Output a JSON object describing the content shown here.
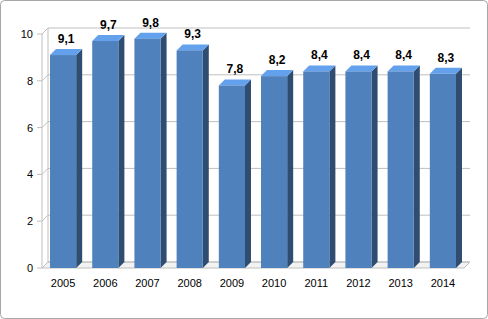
{
  "chart_data": {
    "type": "bar",
    "categories": [
      "2005",
      "2006",
      "2007",
      "2008",
      "2009",
      "2010",
      "2011",
      "2012",
      "2013",
      "2014"
    ],
    "values": [
      9.1,
      9.7,
      9.8,
      9.3,
      7.8,
      8.2,
      8.4,
      8.4,
      8.4,
      8.3
    ],
    "value_labels": [
      "9,1",
      "9,7",
      "9,8",
      "9,3",
      "7,8",
      "8,2",
      "8,4",
      "8,4",
      "8,4",
      "8,3"
    ],
    "color": "#4f81bd",
    "ylim": [
      0,
      10
    ],
    "yticks": [
      0,
      2,
      4,
      6,
      8,
      10
    ],
    "grid": true,
    "data_labels": true
  }
}
